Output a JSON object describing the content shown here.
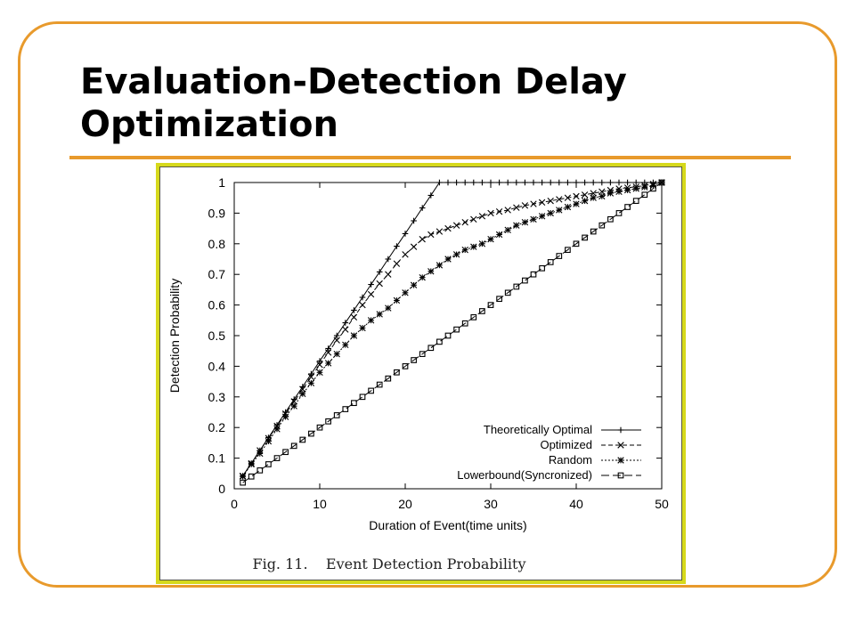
{
  "slide": {
    "title": "Evaluation-Detection Delay Optimization",
    "colors": {
      "frame": "#e89a2c",
      "figure_border": "#d6d91c",
      "title_rule": "#e89a2c"
    }
  },
  "figure": {
    "caption": "Fig. 11.    Event Detection Probability"
  },
  "chart_data": {
    "type": "line",
    "xlabel": "Duration of Event(time units)",
    "ylabel": "Detection Probability",
    "xlim": [
      0,
      50
    ],
    "ylim": [
      0,
      1
    ],
    "xticks": [
      0,
      10,
      20,
      30,
      40,
      50
    ],
    "yticks": [
      0,
      0.1,
      0.2,
      0.3,
      0.4,
      0.5,
      0.6,
      0.7,
      0.8,
      0.9,
      1
    ],
    "grid": false,
    "legend_position": "bottom-right",
    "series": [
      {
        "name": "Theoretically Optimal",
        "marker": "plus",
        "line": "solid",
        "x": [
          1,
          2,
          3,
          4,
          5,
          6,
          7,
          8,
          9,
          10,
          11,
          12,
          13,
          14,
          15,
          16,
          17,
          18,
          19,
          20,
          21,
          22,
          23,
          24,
          25,
          26,
          27,
          28,
          29,
          30,
          31,
          32,
          33,
          34,
          35,
          36,
          37,
          38,
          39,
          40,
          41,
          42,
          43,
          44,
          45,
          46,
          47,
          48,
          49,
          50
        ],
        "y": [
          0.042,
          0.083,
          0.125,
          0.167,
          0.208,
          0.25,
          0.292,
          0.333,
          0.375,
          0.417,
          0.458,
          0.5,
          0.542,
          0.583,
          0.625,
          0.667,
          0.708,
          0.75,
          0.792,
          0.833,
          0.875,
          0.917,
          0.958,
          1,
          1,
          1,
          1,
          1,
          1,
          1,
          1,
          1,
          1,
          1,
          1,
          1,
          1,
          1,
          1,
          1,
          1,
          1,
          1,
          1,
          1,
          1,
          1,
          1,
          1,
          1
        ]
      },
      {
        "name": "Optimized",
        "marker": "x",
        "line": "dashed",
        "x": [
          1,
          2,
          3,
          4,
          5,
          6,
          7,
          8,
          9,
          10,
          11,
          12,
          13,
          14,
          15,
          16,
          17,
          18,
          19,
          20,
          21,
          22,
          23,
          24,
          25,
          26,
          27,
          28,
          29,
          30,
          31,
          32,
          33,
          34,
          35,
          36,
          37,
          38,
          39,
          40,
          41,
          42,
          43,
          44,
          45,
          46,
          47,
          48,
          49,
          50
        ],
        "y": [
          0.042,
          0.083,
          0.125,
          0.165,
          0.205,
          0.245,
          0.285,
          0.325,
          0.365,
          0.405,
          0.445,
          0.485,
          0.52,
          0.56,
          0.6,
          0.635,
          0.67,
          0.7,
          0.735,
          0.765,
          0.79,
          0.815,
          0.83,
          0.84,
          0.85,
          0.86,
          0.87,
          0.88,
          0.89,
          0.9,
          0.905,
          0.91,
          0.918,
          0.925,
          0.93,
          0.935,
          0.94,
          0.945,
          0.95,
          0.955,
          0.96,
          0.965,
          0.97,
          0.975,
          0.98,
          0.983,
          0.986,
          0.99,
          0.995,
          1
        ]
      },
      {
        "name": "Random",
        "marker": "star",
        "line": "dotted",
        "x": [
          1,
          2,
          3,
          4,
          5,
          6,
          7,
          8,
          9,
          10,
          11,
          12,
          13,
          14,
          15,
          16,
          17,
          18,
          19,
          20,
          21,
          22,
          23,
          24,
          25,
          26,
          27,
          28,
          29,
          30,
          31,
          32,
          33,
          34,
          35,
          36,
          37,
          38,
          39,
          40,
          41,
          42,
          43,
          44,
          45,
          46,
          47,
          48,
          49,
          50
        ],
        "y": [
          0.04,
          0.08,
          0.115,
          0.155,
          0.195,
          0.235,
          0.27,
          0.31,
          0.345,
          0.38,
          0.41,
          0.44,
          0.47,
          0.5,
          0.525,
          0.55,
          0.57,
          0.59,
          0.615,
          0.64,
          0.665,
          0.69,
          0.71,
          0.73,
          0.75,
          0.765,
          0.78,
          0.79,
          0.8,
          0.815,
          0.83,
          0.845,
          0.86,
          0.87,
          0.88,
          0.89,
          0.9,
          0.91,
          0.92,
          0.93,
          0.94,
          0.95,
          0.955,
          0.965,
          0.97,
          0.975,
          0.98,
          0.985,
          0.99,
          1
        ]
      },
      {
        "name": "Lowerbound(Syncronized)",
        "marker": "square",
        "line": "long-dash",
        "x": [
          1,
          2,
          3,
          4,
          5,
          6,
          7,
          8,
          9,
          10,
          11,
          12,
          13,
          14,
          15,
          16,
          17,
          18,
          19,
          20,
          21,
          22,
          23,
          24,
          25,
          26,
          27,
          28,
          29,
          30,
          31,
          32,
          33,
          34,
          35,
          36,
          37,
          38,
          39,
          40,
          41,
          42,
          43,
          44,
          45,
          46,
          47,
          48,
          49,
          50
        ],
        "y": [
          0.02,
          0.04,
          0.06,
          0.08,
          0.1,
          0.12,
          0.14,
          0.16,
          0.18,
          0.2,
          0.22,
          0.24,
          0.26,
          0.28,
          0.3,
          0.32,
          0.34,
          0.36,
          0.38,
          0.4,
          0.42,
          0.44,
          0.46,
          0.48,
          0.5,
          0.52,
          0.54,
          0.56,
          0.58,
          0.6,
          0.62,
          0.64,
          0.66,
          0.68,
          0.7,
          0.72,
          0.74,
          0.76,
          0.78,
          0.8,
          0.82,
          0.84,
          0.86,
          0.88,
          0.9,
          0.92,
          0.94,
          0.96,
          0.98,
          1
        ]
      }
    ]
  }
}
